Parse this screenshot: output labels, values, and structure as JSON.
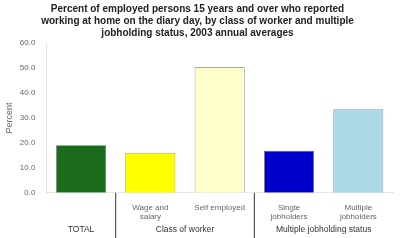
{
  "chart_data": {
    "type": "bar",
    "title": "Percent of employed persons 15 years and over who reported\nworking at home on the diary day, by class of worker and multiple\njobholding status, 2003 annual averages",
    "ylabel": "Percent",
    "categories": [
      null,
      "Wage and\nsalary",
      "Self employed",
      "Single\njobholders",
      "Multiple\njobholders"
    ],
    "group_labels": [
      "TOTAL",
      "Class of worker",
      "Class of worker",
      "Multiple jobholding status",
      "Multiple jobholding status"
    ],
    "values": [
      19.0,
      16.0,
      50.3,
      16.8,
      33.5
    ],
    "colors": [
      "#1a6b1a",
      "#ffff00",
      "#ffffcc",
      "#0000cc",
      "#add8e6"
    ],
    "ylim": [
      0,
      60
    ],
    "yticks": [
      {
        "value": 0,
        "label": "0.0"
      },
      {
        "value": 10,
        "label": "10.0"
      },
      {
        "value": 20,
        "label": "20.0"
      },
      {
        "value": 30,
        "label": "30.0"
      },
      {
        "value": 40,
        "label": "40.0"
      },
      {
        "value": 50,
        "label": "50.0"
      },
      {
        "value": 60,
        "label": "60.0"
      }
    ],
    "grid": false
  }
}
